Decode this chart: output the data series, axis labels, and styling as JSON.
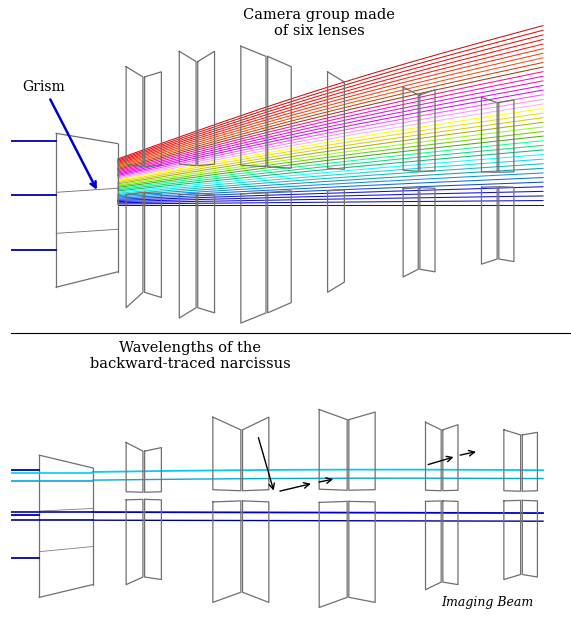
{
  "bg_color": "#ffffff",
  "lens_color": "#707070",
  "title1": "Camera group made\nof six lenses",
  "title2": "Wavelengths of the\nbackward-traced narcissus",
  "label_grism": "Grism",
  "label_imaging": "Imaging Beam",
  "ray_colors_top": [
    "#cc0000",
    "#dd0000",
    "#ee0000",
    "#ff0000",
    "#ff1100",
    "#ff2200",
    "#ff3300",
    "#ff4400",
    "#cc3300",
    "#993300",
    "#ff0088",
    "#ff00aa",
    "#ee00cc",
    "#dd00ee",
    "#cc00ff",
    "#ff44ff",
    "#ff88ff",
    "#ffaaff",
    "#ffff00",
    "#eedd00",
    "#cccc00",
    "#aaaa00",
    "#88ff00",
    "#66cc00",
    "#44aa00",
    "#00ff88",
    "#00dd77",
    "#00bb66",
    "#00ffff",
    "#00dddd",
    "#00bbbb",
    "#0099aa",
    "#0088ff",
    "#0066dd",
    "#0044cc",
    "#0000ff",
    "#0000ee",
    "#0000dd",
    "#0000cc",
    "#0000bb"
  ],
  "ray_colors_bottom": [
    "#00ccff",
    "#00eeff",
    "#0000cc",
    "#000099"
  ],
  "figsize": [
    5.71,
    6.29
  ],
  "dpi": 100
}
